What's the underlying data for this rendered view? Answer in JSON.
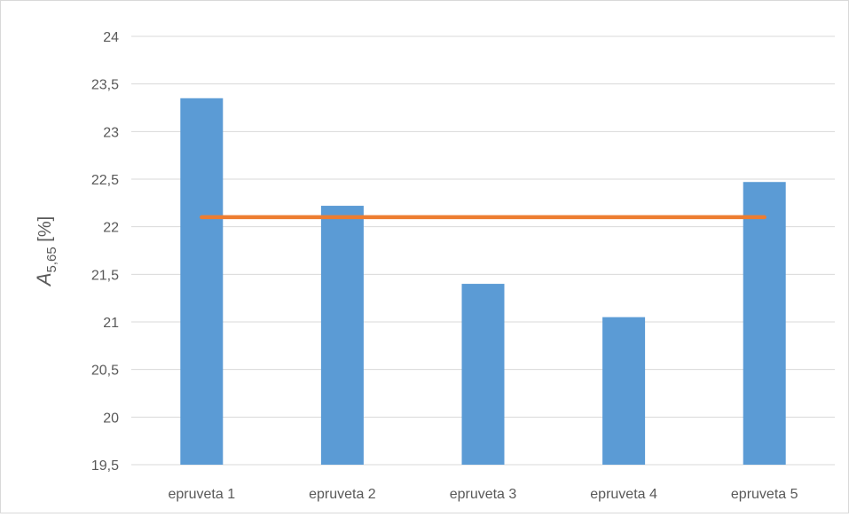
{
  "chart_data": {
    "type": "bar",
    "categories": [
      "epruveta 1",
      "epruveta 2",
      "epruveta 3",
      "epruveta 4",
      "epruveta 5"
    ],
    "series": [
      {
        "type": "bar",
        "values": [
          23.35,
          22.22,
          21.4,
          21.05,
          22.47
        ]
      },
      {
        "type": "line",
        "values": [
          22.1,
          22.1,
          22.1,
          22.1,
          22.1
        ]
      }
    ],
    "ylabel": {
      "symbol": "A",
      "subscript": "5,65",
      "unit": " [%]"
    },
    "ylim": [
      19.5,
      24
    ],
    "yticks": [
      "19,5",
      "20",
      "20,5",
      "21",
      "21,5",
      "22",
      "22,5",
      "23",
      "23,5",
      "24"
    ],
    "grid": true,
    "colors": {
      "bar": "#5b9bd5",
      "line": "#ed7d31",
      "grid": "#d9d9d9",
      "text": "#595959"
    }
  }
}
